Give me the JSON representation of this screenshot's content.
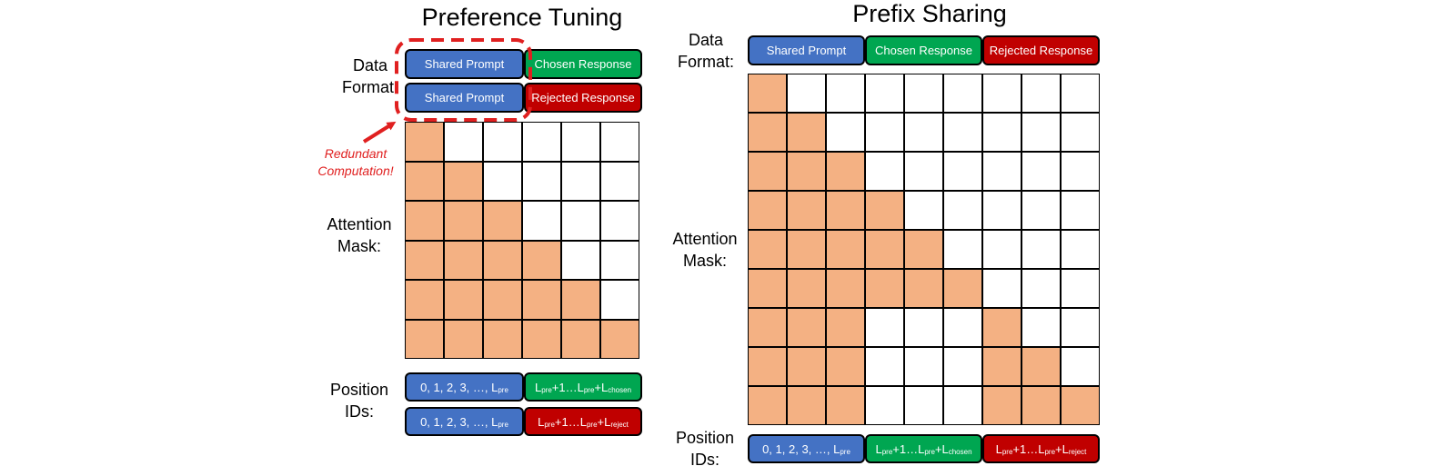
{
  "left": {
    "title": "Preference Tuning",
    "data_format_label": [
      "Data",
      "Format:"
    ],
    "format_rows": [
      [
        "Shared Prompt",
        "Chosen Response"
      ],
      [
        "Shared Prompt",
        "Rejected Response"
      ]
    ],
    "callout": [
      "Redundant",
      "Computation!"
    ],
    "attention_label": [
      "Attention",
      "Mask:"
    ],
    "mask_size": 6,
    "position_label": [
      "Position",
      "IDs:"
    ]
  },
  "right": {
    "title": "Prefix Sharing",
    "data_format_label": [
      "Data",
      "Format:"
    ],
    "format_row": [
      "Shared Prompt",
      "Chosen Response",
      "Rejected Response"
    ],
    "attention_label": [
      "Attention",
      "Mask:"
    ],
    "mask_size": 9,
    "segments": {
      "shared": 3,
      "chosen": 3,
      "rejected": 3
    },
    "position_label": [
      "Position",
      "IDs:"
    ]
  },
  "colors": {
    "shared": "#4472c4",
    "chosen": "#00a651",
    "rejected": "#c00000",
    "mask_fill": "#f4b183",
    "callout": "#e02020"
  }
}
